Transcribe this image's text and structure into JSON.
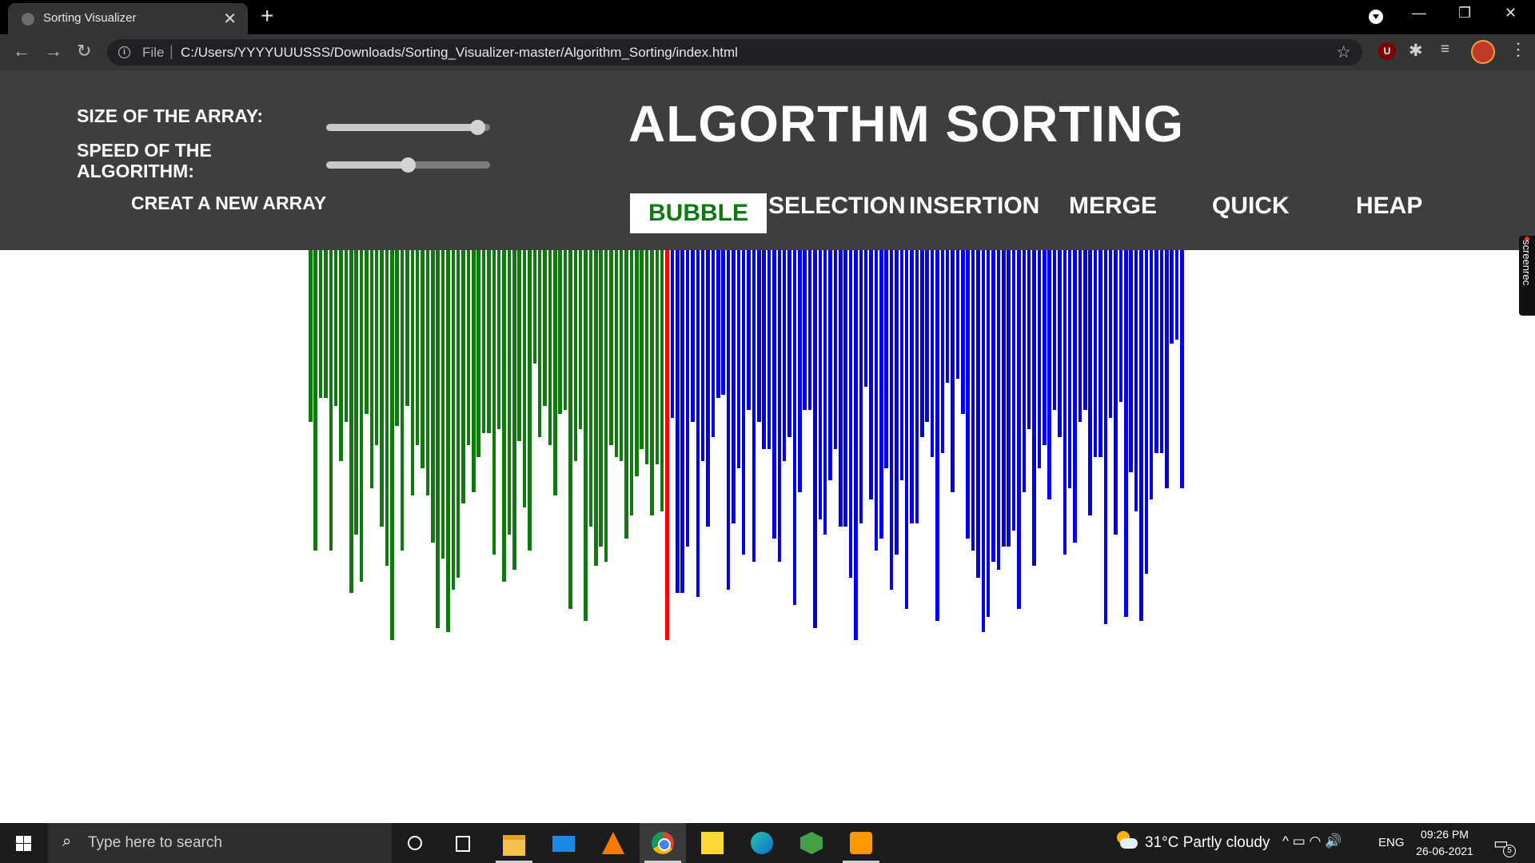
{
  "browser": {
    "tab_title": "Sorting Visualizer",
    "tab_close": "✕",
    "new_tab": "+",
    "file_label": "File",
    "url_separator": "|",
    "url": "C:/Users/YYYYUUUSSS/Downloads/Sorting_Visualizer-master/Algorithm_Sorting/index.html",
    "window_minimize": "—",
    "window_restore": "❐",
    "window_close": "✕",
    "back": "←",
    "forward": "→",
    "reload": "↻",
    "bookmark_star": "☆",
    "ext_ublock": "U",
    "ext_puzzle": "✱",
    "ext_media": "≡",
    "menu": "⋮"
  },
  "controls": {
    "size_label": "SIZE OF THE ARRAY:",
    "size_value_fraction": 0.97,
    "speed_label": "SPEED OF THE ALGORITHM:",
    "speed_value_fraction": 0.5,
    "new_array_label": "CREAT A NEW ARRAY"
  },
  "title": "ALGORTHM SORTING",
  "algorithms": {
    "bubble": "BUBBLE",
    "selection": "SELECTION",
    "insertion": "INSERTION",
    "merge": "MERGE",
    "quick": "QUICK",
    "heap": "HEAP",
    "active": "bubble"
  },
  "colors": {
    "header_bg": "#3e3e3e",
    "sorted": "#0e7a0e",
    "comparing": "#ff0000",
    "unsorted": "#0000ee",
    "active_button_text": "#0e7a0e"
  },
  "bars": {
    "heights": [
      0.44,
      0.77,
      0.38,
      0.38,
      0.77,
      0.4,
      0.54,
      0.44,
      0.88,
      0.73,
      0.85,
      0.42,
      0.61,
      0.5,
      0.71,
      0.81,
      1.0,
      0.45,
      0.77,
      0.4,
      0.63,
      0.5,
      0.56,
      0.63,
      0.75,
      0.97,
      0.79,
      0.98,
      0.87,
      0.84,
      0.65,
      0.5,
      0.62,
      0.53,
      0.47,
      0.47,
      0.78,
      0.46,
      0.85,
      0.73,
      0.82,
      0.49,
      0.66,
      0.77,
      0.29,
      0.48,
      0.4,
      0.5,
      0.63,
      0.42,
      0.41,
      0.92,
      0.54,
      0.46,
      0.95,
      0.71,
      0.81,
      0.76,
      0.8,
      0.5,
      0.53,
      0.54,
      0.74,
      0.68,
      0.58,
      0.51,
      0.55,
      0.68,
      0.55,
      0.67
    ],
    "comparing_index": 70,
    "comparing_height": 1.0,
    "unsorted_heights": [
      0.43,
      0.88,
      0.88,
      0.76,
      0.44,
      0.89,
      0.54,
      0.71,
      0.48,
      0.38,
      0.37,
      0.87,
      0.7,
      0.56,
      0.78,
      0.41,
      0.8,
      0.44,
      0.51,
      0.51,
      0.74,
      0.8,
      0.54,
      0.48,
      0.91,
      0.62,
      0.41,
      0.41,
      0.97,
      0.69,
      0.73,
      0.59,
      0.51,
      0.71,
      0.71,
      0.84,
      1.0,
      0.7,
      0.35,
      0.64,
      0.77,
      0.74,
      0.56,
      0.87,
      0.78,
      0.59,
      0.92,
      0.7,
      0.7,
      0.48,
      0.44,
      0.53,
      0.95,
      0.52,
      0.34,
      0.62,
      0.33,
      0.42,
      0.74,
      0.77,
      0.84,
      0.98,
      0.94,
      0.8,
      0.82,
      0.76,
      0.76,
      0.72,
      0.92,
      0.62,
      0.46,
      0.81,
      0.56,
      0.5,
      0.64,
      0.41,
      0.48,
      0.78,
      0.61,
      0.75,
      0.44,
      0.41,
      0.68,
      0.53,
      0.53,
      0.96,
      0.43,
      0.73,
      0.39,
      0.94,
      0.57,
      0.67,
      0.95,
      0.83,
      0.64,
      0.52,
      0.52,
      0.61,
      0.24,
      0.23,
      0.61
    ]
  },
  "screenrec": "screenrec",
  "taskbar": {
    "search_placeholder": "Type here to search",
    "weather": "31°C  Partly cloudy",
    "tray": "^  ▭  ◠  🔊",
    "language": "ENG",
    "time": "09:26 PM",
    "date": "26-06-2021",
    "notification_count": "5",
    "apps": [
      "cortana",
      "task-view",
      "file-explorer",
      "mail",
      "vlc",
      "chrome",
      "sticky-notes",
      "edge",
      "node",
      "sublime-text"
    ]
  }
}
